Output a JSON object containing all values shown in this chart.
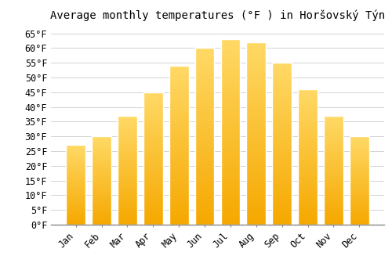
{
  "title": "Average monthly temperatures (°F ) in Horšovský Týn",
  "months": [
    "Jan",
    "Feb",
    "Mar",
    "Apr",
    "May",
    "Jun",
    "Jul",
    "Aug",
    "Sep",
    "Oct",
    "Nov",
    "Dec"
  ],
  "values": [
    27,
    30,
    37,
    45,
    54,
    60,
    63,
    62,
    55,
    46,
    37,
    30
  ],
  "bar_color_bottom": "#F5A800",
  "bar_color_top": "#FFD966",
  "bar_edge_color": "#FFFFFF",
  "background_color": "#FFFFFF",
  "grid_color": "#CCCCCC",
  "ylim": [
    0,
    67
  ],
  "yticks": [
    0,
    5,
    10,
    15,
    20,
    25,
    30,
    35,
    40,
    45,
    50,
    55,
    60,
    65
  ],
  "title_fontsize": 10,
  "tick_fontsize": 8.5,
  "bar_width": 0.75,
  "figsize": [
    5.0,
    3.5
  ],
  "dpi": 100
}
